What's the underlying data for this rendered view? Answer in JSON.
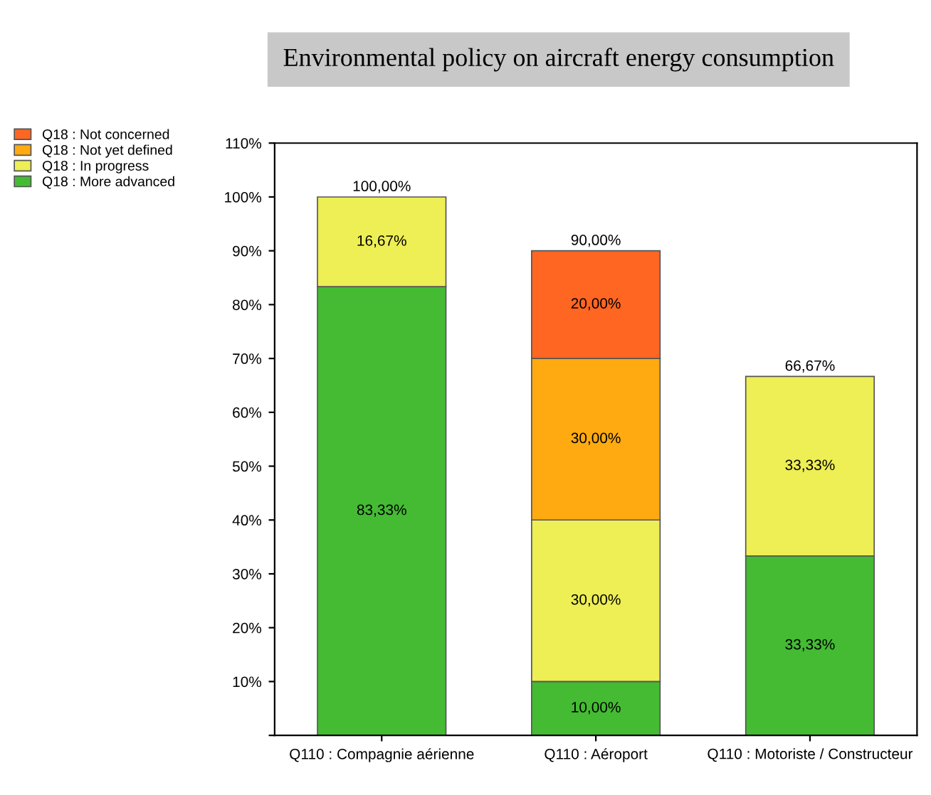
{
  "chart_data": {
    "type": "bar",
    "stacked": true,
    "title": "Environmental policy on aircraft energy consumption",
    "categories": [
      "Q110 : Compagnie aérienne",
      "Q110 : Aéroport",
      "Q110 : Motoriste / Constructeur"
    ],
    "series": [
      {
        "name": "Q18 : More advanced",
        "color": "#44bb33",
        "values": [
          83.33,
          10,
          33.33
        ],
        "value_labels": [
          "83,33%",
          "10,00%",
          "33,33%"
        ]
      },
      {
        "name": "Q18 : In progress",
        "color": "#eeee55",
        "values": [
          16.67,
          30,
          33.33
        ],
        "value_labels": [
          "16,67%",
          "30,00%",
          "33,33%"
        ]
      },
      {
        "name": "Q18 : Not yet defined",
        "color": "#ffaa11",
        "values": [
          null,
          30,
          null
        ],
        "value_labels": [
          null,
          "30,00%",
          null
        ]
      },
      {
        "name": "Q18 : Not concerned",
        "color": "#ff6622",
        "values": [
          null,
          20,
          null
        ],
        "value_labels": [
          null,
          "20,00%",
          null
        ]
      }
    ],
    "totals": [
      "100,00%",
      "90,00%",
      "66,67%"
    ],
    "ylim": [
      0,
      110
    ],
    "yticks": [
      {
        "value": 0,
        "label": null
      },
      {
        "value": 10,
        "label": "10%"
      },
      {
        "value": 20,
        "label": "20%"
      },
      {
        "value": 30,
        "label": "30%"
      },
      {
        "value": 40,
        "label": "40%"
      },
      {
        "value": 50,
        "label": "50%"
      },
      {
        "value": 60,
        "label": "60%"
      },
      {
        "value": 70,
        "label": "70%"
      },
      {
        "value": 80,
        "label": "80%"
      },
      {
        "value": 90,
        "label": "90%"
      },
      {
        "value": 100,
        "label": "100%"
      },
      {
        "value": 110,
        "label": "110%"
      }
    ],
    "legend": "top left"
  }
}
